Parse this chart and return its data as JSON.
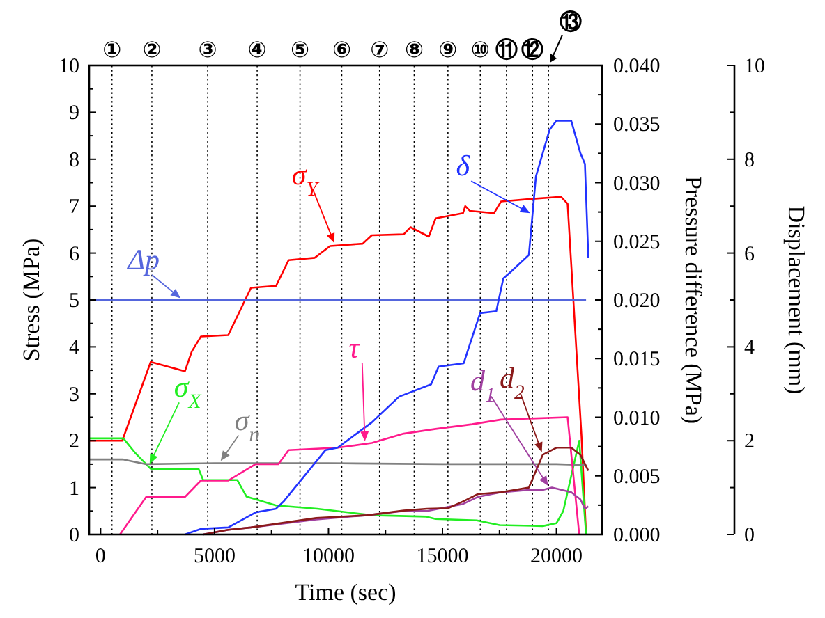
{
  "chart_data": {
    "type": "line",
    "xlabel": "Time (sec)",
    "ylabel": "Stress (MPa)",
    "y2label": "Pressure difference (MPa)",
    "y3label": "Displacement (mm)",
    "xlim": [
      -500,
      22000
    ],
    "xticks": [
      0,
      5000,
      10000,
      15000,
      20000
    ],
    "ylim": [
      0,
      10
    ],
    "yticks": [
      0,
      1,
      2,
      3,
      4,
      5,
      6,
      7,
      8,
      9,
      10
    ],
    "y2lim": [
      0,
      0.04
    ],
    "y2ticks": [
      {
        "value": 0,
        "label": "0.000"
      },
      0.005,
      {
        "value": 0.01,
        "label": "0.010"
      },
      0.015,
      {
        "value": 0.02,
        "label": "0.020"
      },
      0.025,
      {
        "value": 0.03,
        "label": "0.030"
      },
      0.035,
      {
        "value": 0.04,
        "label": "0.040"
      }
    ],
    "y3lim": [
      0,
      10
    ],
    "y3ticks": [
      0,
      2,
      4,
      6,
      8,
      10
    ],
    "series": [
      {
        "name": "σ$_{Y}$",
        "color": "#ff0000",
        "x": [
          -500,
          950,
          2200,
          3700,
          4000,
          4400,
          5600,
          6600,
          7700,
          8250,
          9400,
          10070,
          11500,
          11900,
          13300,
          13600,
          14400,
          14700,
          15900,
          16000,
          16200,
          17260,
          17570,
          18790,
          20200,
          20490,
          21100,
          21300
        ],
        "values": [
          2.0,
          2.0,
          3.68,
          3.48,
          3.9,
          4.22,
          4.25,
          5.26,
          5.3,
          5.85,
          5.9,
          6.15,
          6.2,
          6.38,
          6.4,
          6.55,
          6.35,
          6.74,
          6.85,
          7.0,
          6.9,
          6.85,
          7.1,
          7.15,
          7.2,
          7.05,
          2.1,
          0
        ]
      },
      {
        "name": "σ$_{X}$",
        "color": "#22ee22",
        "x": [
          -500,
          1000,
          1500,
          2200,
          4300,
          4500,
          6000,
          6400,
          7700,
          9500,
          11900,
          14300,
          14700,
          16500,
          17500,
          19400,
          20000,
          20300,
          21000,
          21300
        ],
        "values": [
          2.05,
          2.05,
          1.75,
          1.4,
          1.4,
          1.16,
          1.16,
          0.81,
          0.62,
          0.55,
          0.41,
          0.38,
          0.33,
          0.3,
          0.2,
          0.18,
          0.24,
          0.5,
          2.0,
          0
        ]
      },
      {
        "name": "σ$_{n}$",
        "color": "#808080",
        "x": [
          -500,
          1000,
          2000,
          5000,
          10000,
          15000,
          20000,
          21300
        ],
        "values": [
          1.6,
          1.6,
          1.5,
          1.52,
          1.52,
          1.5,
          1.5,
          1.48
        ]
      },
      {
        "name": "τ",
        "color": "#ff1a8c",
        "x": [
          850,
          2000,
          3700,
          4400,
          5600,
          6800,
          7800,
          8250,
          10400,
          11900,
          13300,
          14700,
          16300,
          17570,
          20490,
          21000
        ],
        "values": [
          0,
          0.8,
          0.8,
          1.15,
          1.15,
          1.5,
          1.5,
          1.8,
          1.85,
          1.95,
          2.15,
          2.25,
          2.35,
          2.45,
          2.5,
          0
        ]
      },
      {
        "name": "Δp",
        "color": "#5566dd",
        "axis": "y2",
        "x": [
          -500,
          21300
        ],
        "values": [
          0.02,
          0.02
        ]
      },
      {
        "name": "δ",
        "color": "#2233ff",
        "axis": "y3",
        "x": [
          3700,
          4400,
          5600,
          6800,
          7700,
          8040,
          9870,
          10400,
          11900,
          13100,
          14500,
          14830,
          15930,
          16650,
          17360,
          17670,
          18000,
          18790,
          19100,
          19700,
          20000,
          20650,
          21050,
          21250,
          21400
        ],
        "values": [
          0,
          0.12,
          0.15,
          0.47,
          0.55,
          0.71,
          1.8,
          1.85,
          2.39,
          2.94,
          3.2,
          3.58,
          3.65,
          4.72,
          4.76,
          5.46,
          5.6,
          5.96,
          7.63,
          8.63,
          8.82,
          8.82,
          8.13,
          7.9,
          5.9
        ]
      },
      {
        "name": "d$_{1}$",
        "color": "#a040a0",
        "axis": "y3",
        "x": [
          4500,
          5600,
          6600,
          9460,
          11700,
          13300,
          14330,
          15900,
          16550,
          17570,
          18790,
          19400,
          19800,
          20650,
          21050,
          21250,
          21400
        ],
        "values": [
          0,
          0.1,
          0.15,
          0.32,
          0.41,
          0.5,
          0.5,
          0.65,
          0.8,
          0.9,
          0.95,
          0.95,
          1.0,
          0.9,
          0.75,
          0.55,
          0.6
        ]
      },
      {
        "name": "d$_{2}$",
        "color": "#8b1a1a",
        "axis": "y3",
        "x": [
          4500,
          5600,
          6600,
          9460,
          11700,
          13300,
          14330,
          15240,
          15930,
          16550,
          17570,
          18790,
          19400,
          20000,
          20650,
          21050,
          21400
        ],
        "values": [
          0,
          0.1,
          0.15,
          0.35,
          0.41,
          0.51,
          0.55,
          0.56,
          0.71,
          0.86,
          0.9,
          1.0,
          1.7,
          1.85,
          1.85,
          1.7,
          1.36
        ]
      }
    ],
    "ref_lines": [
      {
        "axis": "x",
        "value": 500,
        "label": "①",
        "line_style": "dotted",
        "color": "#000000"
      },
      {
        "axis": "x",
        "value": 2250,
        "label": "②",
        "line_style": "dotted",
        "color": "#000000"
      },
      {
        "axis": "x",
        "value": 4700,
        "label": "③",
        "line_style": "dotted",
        "color": "#000000"
      },
      {
        "axis": "x",
        "value": 6870,
        "label": "④",
        "line_style": "dotted",
        "color": "#000000"
      },
      {
        "axis": "x",
        "value": 8750,
        "label": "⑤",
        "line_style": "dotted",
        "color": "#000000"
      },
      {
        "axis": "x",
        "value": 10580,
        "label": "⑥",
        "line_style": "dotted",
        "color": "#000000"
      },
      {
        "axis": "x",
        "value": 12240,
        "label": "⑦",
        "line_style": "dotted",
        "color": "#000000"
      },
      {
        "axis": "x",
        "value": 13760,
        "label": "⑧",
        "line_style": "dotted",
        "color": "#000000"
      },
      {
        "axis": "x",
        "value": 15240,
        "label": "⑨",
        "line_style": "dotted",
        "color": "#000000"
      },
      {
        "axis": "x",
        "value": 16660,
        "label": "⑩",
        "line_style": "dotted",
        "color": "#000000"
      },
      {
        "axis": "x",
        "value": 17810,
        "label": "⑪",
        "line_style": "dotted",
        "color": "#000000"
      },
      {
        "axis": "x",
        "value": 18950,
        "label": "⑫",
        "line_style": "dotted",
        "color": "#000000"
      },
      {
        "axis": "x",
        "value": 19650,
        "label": "⑬",
        "line_style": "dotted",
        "color": "#000000"
      }
    ]
  }
}
